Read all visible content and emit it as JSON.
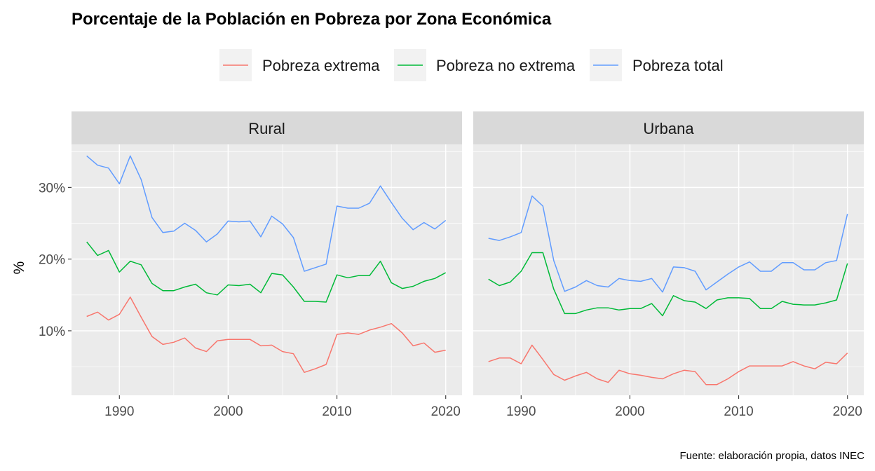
{
  "chart_data": {
    "type": "line",
    "title": "Porcentaje de la Población en Pobreza por Zona Económica",
    "ylabel": "%",
    "xlabel": "",
    "caption": "Fuente: elaboración propia, datos INEC",
    "legend_position": "top",
    "grid": true,
    "xlim": [
      1985.6,
      2021.5
    ],
    "ylim": [
      1.0,
      36.0
    ],
    "x_ticks": [
      1990,
      2000,
      2010,
      2020
    ],
    "y_ticks": [
      10,
      20,
      30
    ],
    "y_tick_labels": [
      "10%",
      "20%",
      "30%"
    ],
    "colors": {
      "Pobreza extrema": "#F8766D",
      "Pobreza no extrema": "#00BA38",
      "Pobreza total": "#619CFF"
    },
    "legend": [
      "Pobreza extrema",
      "Pobreza no extrema",
      "Pobreza total"
    ],
    "x": [
      1987,
      1988,
      1989,
      1990,
      1991,
      1992,
      1993,
      1994,
      1995,
      1996,
      1997,
      1998,
      1999,
      2000,
      2001,
      2002,
      2003,
      2004,
      2005,
      2006,
      2007,
      2008,
      2009,
      2010,
      2011,
      2012,
      2013,
      2014,
      2015,
      2016,
      2017,
      2018,
      2019,
      2020
    ],
    "panels": [
      {
        "name": "Rural",
        "series": [
          {
            "name": "Pobreza extrema",
            "values": [
              12.0,
              12.6,
              11.5,
              12.3,
              14.7,
              11.9,
              9.2,
              8.1,
              8.4,
              9.0,
              7.6,
              7.1,
              8.6,
              8.8,
              8.8,
              8.8,
              7.9,
              8.0,
              7.1,
              6.8,
              4.2,
              4.7,
              5.3,
              9.5,
              9.7,
              9.5,
              10.1,
              10.5,
              11.0,
              9.7,
              7.9,
              8.3,
              7.0,
              7.3
            ]
          },
          {
            "name": "Pobreza no extrema",
            "values": [
              22.4,
              20.5,
              21.2,
              18.2,
              19.7,
              19.2,
              16.6,
              15.6,
              15.6,
              16.1,
              16.5,
              15.3,
              15.0,
              16.4,
              16.3,
              16.5,
              15.3,
              18.0,
              17.8,
              16.1,
              14.1,
              14.1,
              14.0,
              17.8,
              17.4,
              17.7,
              17.7,
              19.7,
              16.7,
              15.9,
              16.2,
              16.9,
              17.3,
              18.1
            ]
          },
          {
            "name": "Pobreza total",
            "values": [
              34.4,
              33.1,
              32.7,
              30.5,
              34.4,
              31.1,
              25.8,
              23.7,
              23.9,
              25.0,
              24.0,
              22.4,
              23.5,
              25.3,
              25.2,
              25.3,
              23.1,
              26.0,
              24.9,
              23.0,
              18.3,
              18.8,
              19.3,
              27.4,
              27.1,
              27.1,
              27.8,
              30.2,
              27.9,
              25.7,
              24.1,
              25.1,
              24.2,
              25.4
            ]
          }
        ]
      },
      {
        "name": "Urbana",
        "series": [
          {
            "name": "Pobreza extrema",
            "values": [
              5.7,
              6.2,
              6.2,
              5.4,
              8.0,
              6.0,
              3.9,
              3.1,
              3.7,
              4.2,
              3.3,
              2.8,
              4.5,
              4.0,
              3.8,
              3.5,
              3.3,
              4.0,
              4.5,
              4.3,
              2.5,
              2.5,
              3.3,
              4.3,
              5.1,
              5.1,
              5.1,
              5.1,
              5.7,
              5.1,
              4.7,
              5.6,
              5.4,
              6.9
            ]
          },
          {
            "name": "Pobreza no extrema",
            "values": [
              17.2,
              16.3,
              16.8,
              18.3,
              20.9,
              20.9,
              15.8,
              12.4,
              12.4,
              12.9,
              13.2,
              13.2,
              12.9,
              13.1,
              13.1,
              13.8,
              12.1,
              14.9,
              14.2,
              14.0,
              13.1,
              14.3,
              14.6,
              14.6,
              14.5,
              13.1,
              13.1,
              14.1,
              13.7,
              13.6,
              13.6,
              13.9,
              14.3,
              19.4
            ]
          },
          {
            "name": "Pobreza total",
            "values": [
              22.9,
              22.6,
              23.1,
              23.7,
              28.8,
              27.4,
              19.8,
              15.5,
              16.1,
              17.0,
              16.3,
              16.1,
              17.3,
              17.0,
              16.9,
              17.3,
              15.4,
              18.9,
              18.8,
              18.3,
              15.7,
              16.8,
              17.9,
              18.9,
              19.6,
              18.3,
              18.3,
              19.5,
              19.5,
              18.5,
              18.5,
              19.5,
              19.8,
              26.3
            ]
          }
        ]
      }
    ]
  }
}
